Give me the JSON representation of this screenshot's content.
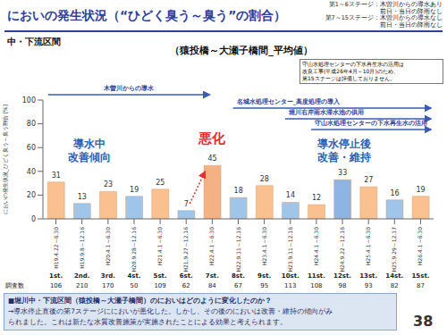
{
  "slide": {
    "section": "中・下流区間",
    "conditions": [
      "第1～6ステージ：木曽川からの導水あり",
      "前日・当日の降雨なし",
      "第7～15ステージ：木曽川からの導水なし",
      "前日・当日の降雨なし"
    ],
    "note": [
      "守山水処理センターの下水再生水の活用は",
      "改良工事(平成26年4月～10月)のため、",
      "第15ステージは評価しておりません。"
    ],
    "summary": [
      "■堀川中・下流区間（猿投橋～大瀬子橋間）のにおいはどのように変化したのか？",
      "→導水停止直後の第7ステージににおいが悪化した。しかし、その後のにおいは改善・維持の傾向がみ",
      "られました。これは新たな水質改善施策が実施されたことによる効果と考えられます。"
    ],
    "page": "38"
  },
  "chart_data": {
    "type": "bar",
    "title": "においの発生状況（“ひどく臭う～臭う”の割合）",
    "subtitle": "（猿投橋～大瀬子橋間_平均値）",
    "y_label": "においの発生状況_ひどく臭う～臭う割合 [%]",
    "categories": [
      "1st.",
      "2nd.",
      "3rd.",
      "4st.",
      "5st.",
      "6st.",
      "7st.",
      "8st.",
      "9st.",
      "10st.",
      "11st.",
      "12st.",
      "13st.",
      "14st.",
      "15st."
    ],
    "periods": [
      "H19.4.22～6.30",
      "H19.9.8～12.16",
      "H20.4.1～6.30",
      "H20.9.28～12.16",
      "H21.4.1～6.30",
      "H21.9.27～12.16",
      "H22.4.1～6.30",
      "H22.9.11～12.16",
      "H23.4.1～6.30",
      "H23.9.11～12.16",
      "H24.4.1～6.30",
      "H24.9.22～12.16",
      "H25.4.1～6.30",
      "H25.9.29～12.17",
      "H26.4.1～6.30"
    ],
    "count_label": "調査数",
    "counts": [
      106,
      210,
      170,
      50,
      109,
      62,
      84,
      67,
      95,
      113,
      108,
      98,
      93,
      82,
      87
    ],
    "values": [
      31,
      13,
      23,
      19,
      25,
      7,
      45,
      18,
      28,
      14,
      12,
      33,
      27,
      16,
      19
    ],
    "colors": [
      "#fac090",
      "#9fc5e8",
      "#fac090",
      "#9fc5e8",
      "#fac090",
      "#9fc5e8",
      "#f4b183",
      "#9fc5e8",
      "#fac090",
      "#9fc5e8",
      "#fac090",
      "#8db4e2",
      "#fac090",
      "#9fc5e8",
      "#fac090"
    ],
    "ylim": [
      0,
      100
    ],
    "yticks": [
      0,
      20,
      40,
      60,
      80,
      100
    ],
    "grid": false,
    "data_labels": true,
    "measures": [
      "木曽川からの導水",
      "名城水処理センター_高度処理の導入",
      "堀川右岸雨水滞水池の供用",
      "守山水処理センターの下水再生水の活用"
    ],
    "annotations": [
      [
        "導水中",
        "改善傾向"
      ],
      [
        "悪化"
      ],
      [
        "導水停止後",
        "改善・維持"
      ]
    ]
  }
}
